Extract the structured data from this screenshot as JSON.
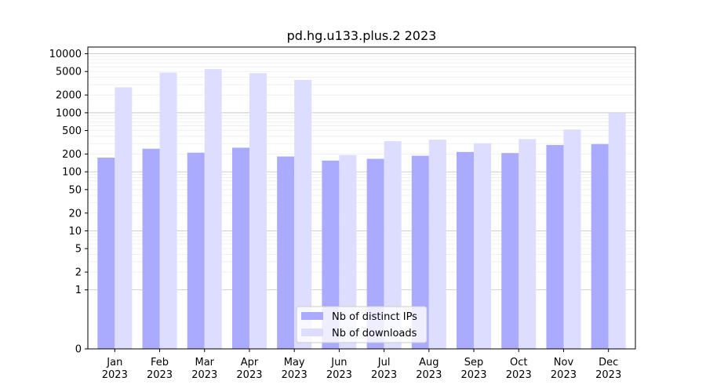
{
  "chart_data": {
    "type": "bar",
    "title": "pd.hg.u133.plus.2 2023",
    "xlabel": "",
    "ylabel": "",
    "y_scale": "symlog",
    "ylim": [
      0,
      13000
    ],
    "y_ticks": [
      0,
      1,
      2,
      5,
      10,
      20,
      50,
      100,
      200,
      500,
      1000,
      2000,
      5000,
      10000
    ],
    "categories": [
      "Jan\n2023",
      "Feb\n2023",
      "Mar\n2023",
      "Apr\n2023",
      "May\n2023",
      "Jun\n2023",
      "Jul\n2023",
      "Aug\n2023",
      "Sep\n2023",
      "Oct\n2023",
      "Nov\n2023",
      "Dec\n2023"
    ],
    "series": [
      {
        "name": "Nb of distinct IPs",
        "color": "#aaaaff",
        "values": [
          174,
          246,
          211,
          256,
          182,
          155,
          166,
          187,
          217,
          208,
          285,
          295
        ]
      },
      {
        "name": "Nb of downloads",
        "color": "#ddddff",
        "values": [
          2700,
          4800,
          5500,
          4700,
          3600,
          192,
          330,
          350,
          305,
          360,
          520,
          980
        ]
      }
    ],
    "grid": true,
    "legend_position": "lower-center"
  }
}
